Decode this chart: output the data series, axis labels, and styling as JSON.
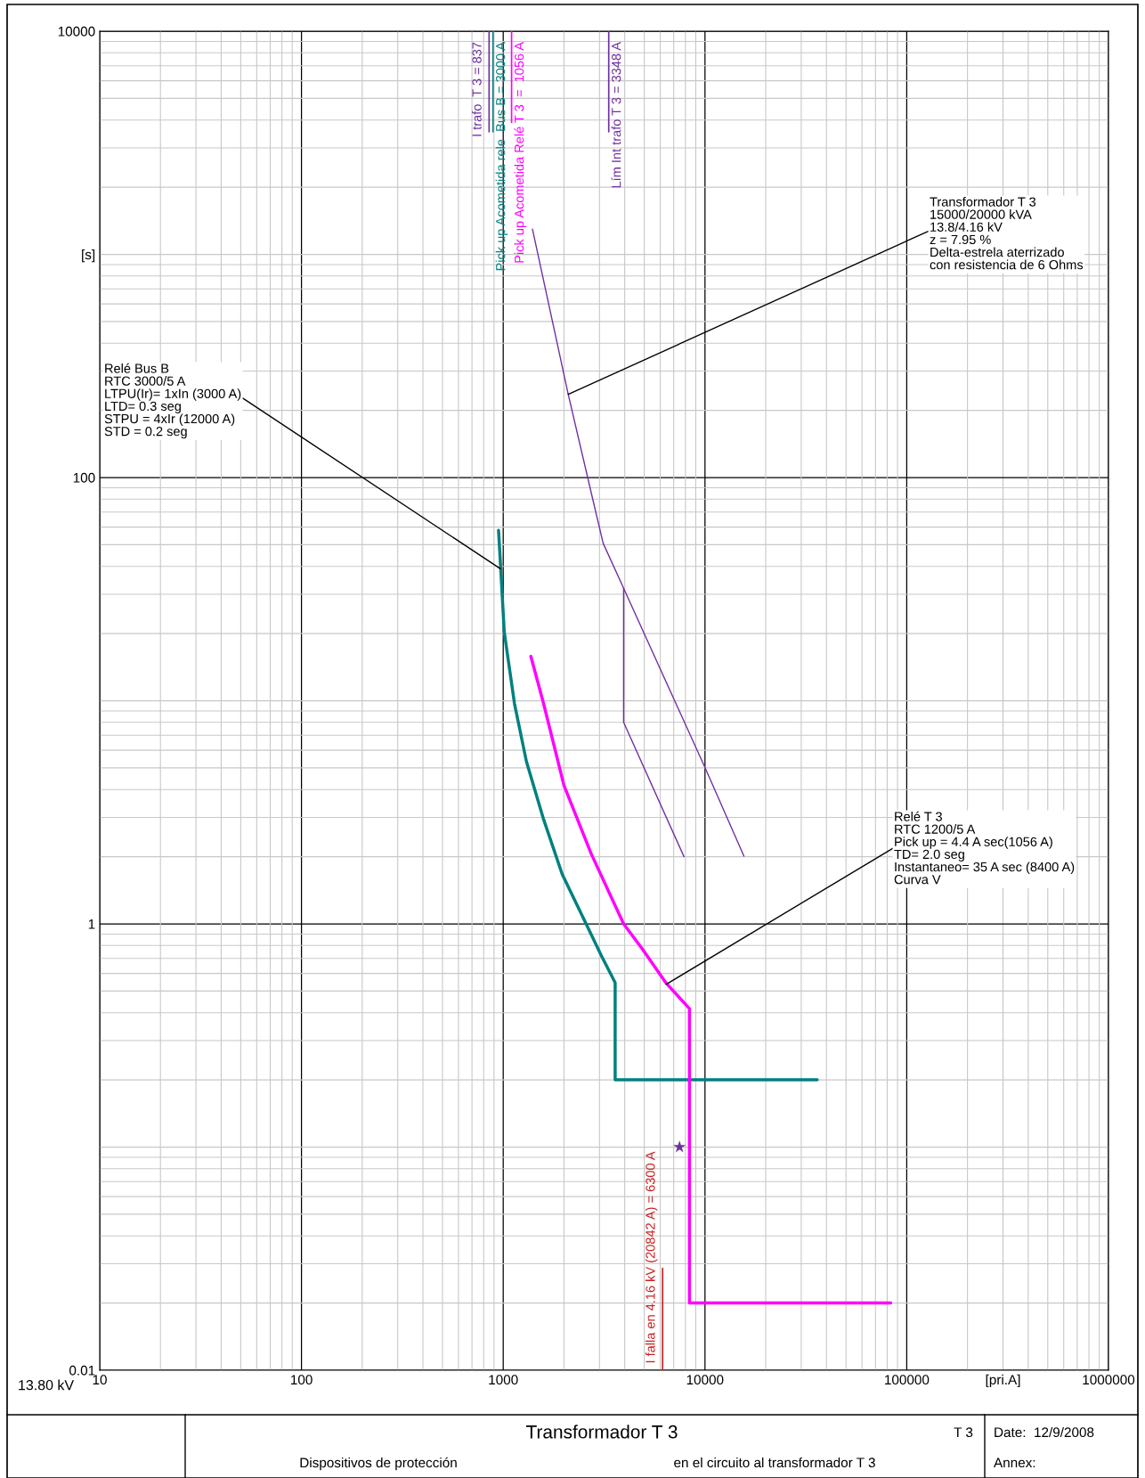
{
  "chart_data": {
    "type": "line",
    "title": "Transformador T 3",
    "xlim": [
      10,
      1000000
    ],
    "ylim": [
      0.01,
      10000
    ],
    "log": "xy",
    "grid": true,
    "xticks": [
      10,
      100,
      1000,
      10000,
      100000,
      {
        "value": 300000,
        "label": "[pri.A]"
      },
      1000000
    ],
    "yticks": [
      0.01,
      {
        "value": 0.1,
        "label": null
      },
      1,
      {
        "value": 10,
        "label": null
      },
      100,
      {
        "value": 1000,
        "label": "[s]"
      },
      10000
    ],
    "series": [
      {
        "color": "#008080",
        "x": [
          948,
          973,
          1012,
          1137,
          1303,
          1585,
          1960,
          2575,
          3069,
          3587,
          3587,
          36000
        ],
        "values": [
          58,
          38.3,
          20.3,
          9.7,
          5.34,
          2.94,
          1.67,
          1.0,
          0.718,
          0.545,
          0.2,
          0.2
        ]
      },
      {
        "color": "#ff00ff",
        "x": [
          1371,
          1585,
          2000,
          2730,
          3951,
          4894,
          6427,
          8375,
          8375,
          83300
        ],
        "values": [
          15.8,
          9.7,
          4.17,
          2.06,
          1.0,
          0.771,
          0.542,
          0.417,
          0.02,
          0.02
        ]
      },
      {
        "color": "#7030a0",
        "x": [
          1396,
          2100,
          2777,
          3129,
          3951,
          10046,
          15600
        ],
        "values": [
          1297,
          236,
          80,
          50.7,
          31.9,
          4.97,
          2.01
        ]
      },
      {
        "color": "#7030a0",
        "x": [
          3951,
          3951,
          7870
        ],
        "values": [
          31.9,
          8.0,
          2.0
        ]
      },
      {
        "type": "scatter",
        "color": "#7030a0",
        "marker": "star",
        "x": [
          7480
        ],
        "values": [
          0.1
        ]
      },
      {
        "name": "I trafo  T 3 = 837",
        "color": "#7030a0",
        "x": [
          851,
          851
        ],
        "values": [
          3540,
          10000
        ]
      },
      {
        "name": "Pick up Acometida rele  Bus B = 3000 A",
        "color": "#008080",
        "x": [
          890,
          890
        ],
        "values": [
          3540,
          10000
        ]
      },
      {
        "name": "Pick up Acometida Relé T 3  =  1056 A",
        "color": "#ff00ff",
        "x": [
          1100,
          1100
        ],
        "values": [
          3900,
          10000
        ]
      },
      {
        "name": "Lím Int trafo T 3 = 3348 A",
        "color": "#7030a0",
        "x": [
          3334,
          3334
        ],
        "values": [
          3540,
          10000
        ]
      },
      {
        "name": "I falla en 4.16 kV (20842 A) = 6300 A",
        "color": "#cc2020",
        "x": [
          6166,
          6166
        ],
        "values": [
          0.01,
          0.0286
        ]
      }
    ],
    "annotations": [
      {
        "text": "Relé Bus B\nRTC 3000/5 A\nLTPU(Ir)= 1xIn (3000 A)\nLTD= 0.3 seg\nSTPU = 4xIr (12000 A)\nSTD = 0.2 seg",
        "x": 968,
        "y": 39
      },
      {
        "text": "Transformador T 3\n15000/20000 kVA\n13.8/4.16 kV\nz = 7.95 %\nDelta-estrela aterrizado\ncon resistencia de 6 Ohms",
        "x": 2100,
        "y": 236
      },
      {
        "text": "Relé T 3\nRTC 1200/5 A\nPick up = 4.4 A sec(1056 A)\nTD= 2.0 seg\nInstantaneo= 35 A sec (8400 A)\nCurva V",
        "x": 6427,
        "y": 0.536
      },
      "13.80 kV",
      "T 3",
      "Date:  12/9/2008",
      "Dispositivos de protección",
      "en el circuito al transformador T 3",
      "Annex:"
    ]
  }
}
